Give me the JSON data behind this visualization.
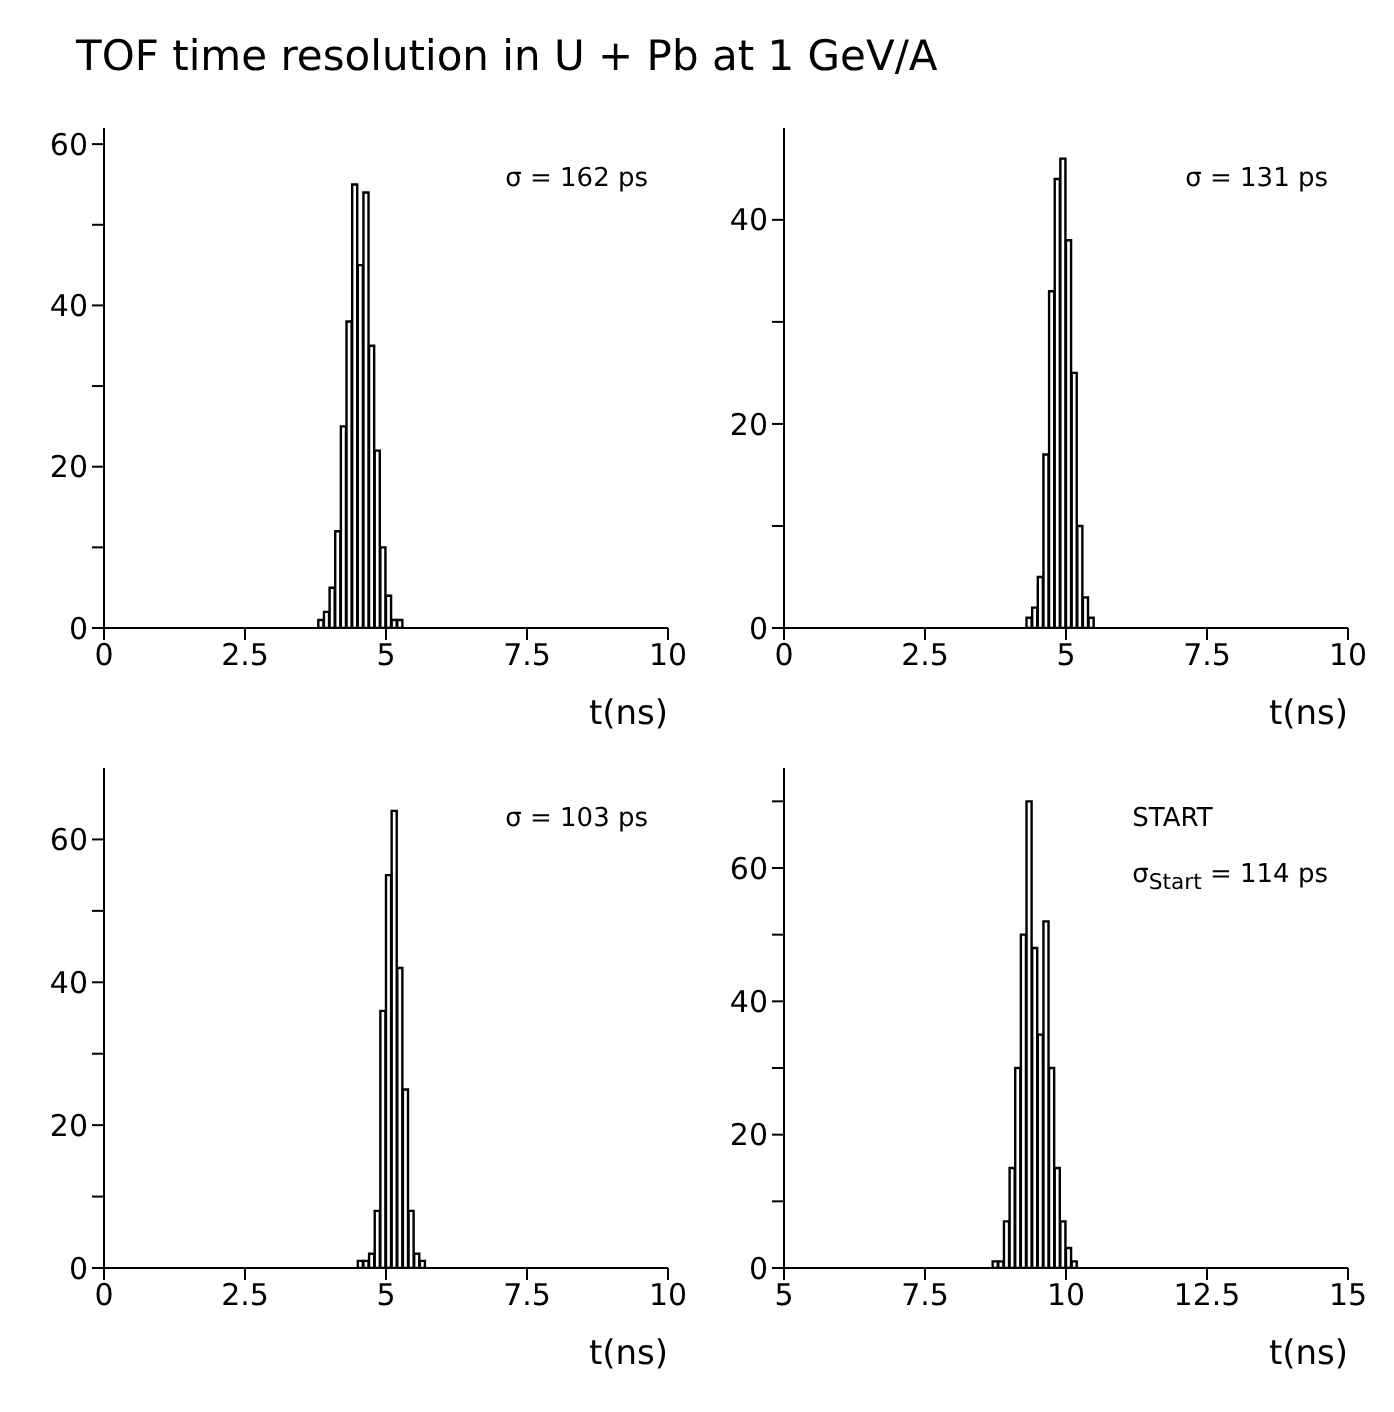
{
  "chart_data": [
    {
      "type": "histogram",
      "title": "TOF time resolution in U + Pb at 1 GeV/A",
      "xlabel": "t(ns)",
      "annotations": [
        "σ = 162 ps"
      ],
      "color": "#000000",
      "xlim": [
        0,
        10
      ],
      "xticks": [
        0,
        2.5,
        5,
        7.5,
        10
      ],
      "ylim": [
        0,
        62
      ],
      "yticks": [
        0,
        {
          "value": 10,
          "label": null
        },
        20,
        {
          "value": 30,
          "label": null
        },
        40,
        {
          "value": 50,
          "label": null
        },
        60
      ],
      "bins": [
        3.8,
        3.9,
        4.0,
        4.1,
        4.2,
        4.3,
        4.4,
        4.5,
        4.6,
        4.7,
        4.8,
        4.9,
        5.0,
        5.1,
        5.2,
        5.3
      ],
      "values": [
        1,
        2,
        5,
        12,
        25,
        38,
        55,
        45,
        54,
        35,
        22,
        10,
        4,
        1,
        1
      ]
    },
    {
      "type": "histogram",
      "xlabel": "t(ns)",
      "annotations": [
        "σ = 131 ps"
      ],
      "color": "#000000",
      "xlim": [
        0,
        10
      ],
      "xticks": [
        0,
        2.5,
        5,
        7.5,
        10
      ],
      "ylim": [
        0,
        49
      ],
      "yticks": [
        0,
        {
          "value": 10,
          "label": null
        },
        20,
        {
          "value": 30,
          "label": null
        },
        40
      ],
      "bins": [
        4.3,
        4.4,
        4.5,
        4.6,
        4.7,
        4.8,
        4.9,
        5.0,
        5.1,
        5.2,
        5.3,
        5.4,
        5.5
      ],
      "values": [
        1,
        2,
        5,
        17,
        33,
        44,
        46,
        38,
        25,
        10,
        3,
        1
      ]
    },
    {
      "type": "histogram",
      "xlabel": "t(ns)",
      "annotations": [
        "σ = 103 ps"
      ],
      "color": "#000000",
      "xlim": [
        0,
        10
      ],
      "xticks": [
        0,
        2.5,
        5,
        7.5,
        10
      ],
      "ylim": [
        0,
        70
      ],
      "yticks": [
        0,
        {
          "value": 10,
          "label": null
        },
        20,
        {
          "value": 30,
          "label": null
        },
        40,
        {
          "value": 50,
          "label": null
        },
        60
      ],
      "bins": [
        4.5,
        4.6,
        4.7,
        4.8,
        4.9,
        5.0,
        5.1,
        5.2,
        5.3,
        5.4,
        5.5,
        5.6,
        5.7
      ],
      "values": [
        1,
        1,
        2,
        8,
        36,
        55,
        64,
        42,
        25,
        8,
        2,
        1
      ]
    },
    {
      "type": "histogram",
      "xlabel": "t(ns)",
      "annotations": [
        "START",
        "σ$_{Start}$ = 114 ps"
      ],
      "color": "#000000",
      "xlim": [
        5,
        15
      ],
      "xticks": [
        5,
        7.5,
        10,
        12.5,
        15
      ],
      "ylim": [
        0,
        75
      ],
      "yticks": [
        0,
        {
          "value": 10,
          "label": null
        },
        20,
        {
          "value": 30,
          "label": null
        },
        40,
        {
          "value": 50,
          "label": null
        },
        60,
        {
          "value": 70,
          "label": null
        }
      ],
      "bins": [
        8.7,
        8.8,
        8.9,
        9.0,
        9.1,
        9.2,
        9.3,
        9.4,
        9.5,
        9.6,
        9.7,
        9.8,
        9.9,
        10.0,
        10.1,
        10.2
      ],
      "values": [
        1,
        1,
        7,
        15,
        30,
        50,
        70,
        48,
        35,
        52,
        30,
        15,
        7,
        3,
        1
      ]
    }
  ]
}
